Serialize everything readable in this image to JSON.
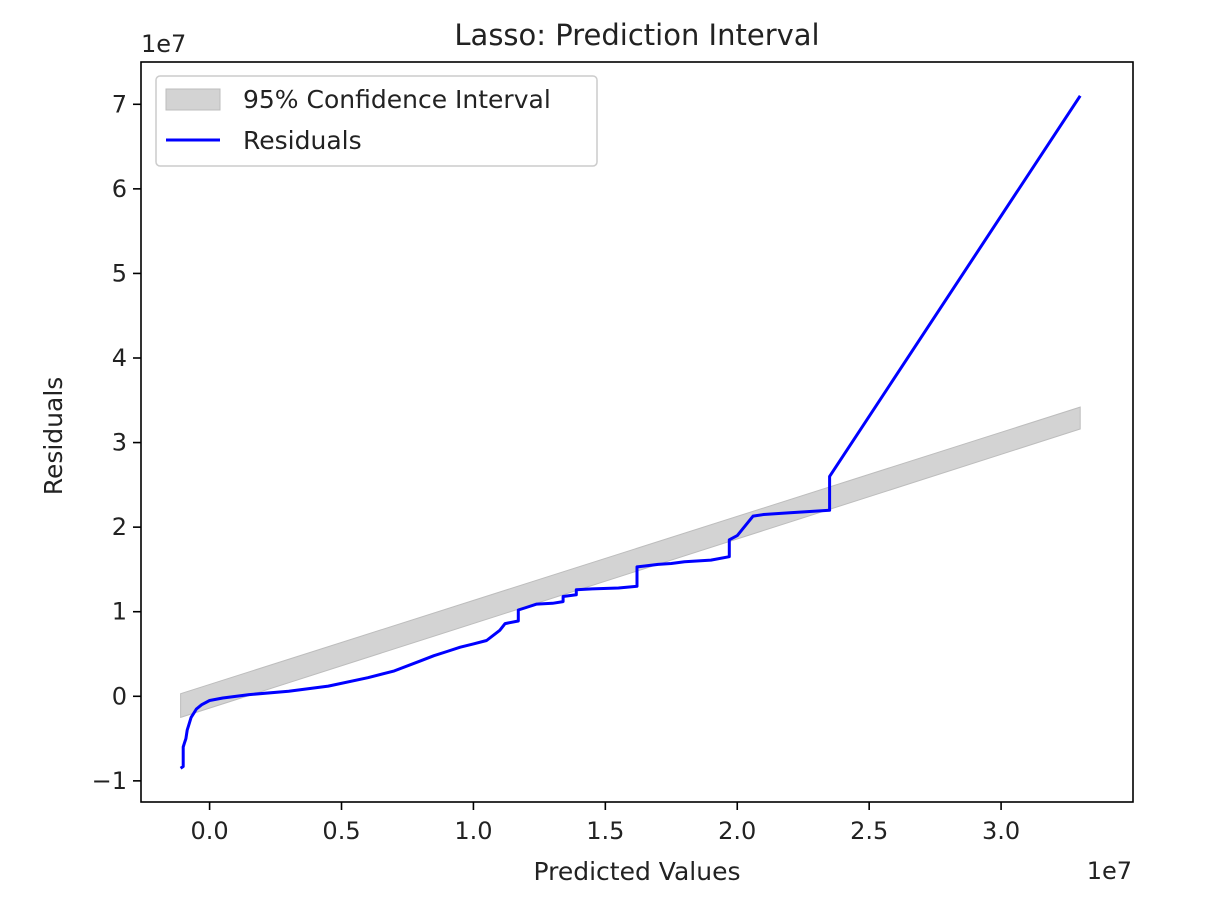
{
  "chart_data": {
    "type": "line",
    "title": "Lasso: Prediction Interval",
    "xlabel": "Predicted Values",
    "ylabel": "Residuals",
    "x_offset_label": "1e7",
    "y_offset_label": "1e7",
    "xlim": [
      -2.6,
      35.0
    ],
    "ylim": [
      -12.5,
      75.0
    ],
    "x_ticks": [
      {
        "value": 0.0,
        "label": "0.0"
      },
      {
        "value": 5.0,
        "label": "0.5"
      },
      {
        "value": 10.0,
        "label": "1.0"
      },
      {
        "value": 15.0,
        "label": "1.5"
      },
      {
        "value": 20.0,
        "label": "2.0"
      },
      {
        "value": 25.0,
        "label": "2.5"
      },
      {
        "value": 30.0,
        "label": "3.0"
      }
    ],
    "y_ticks": [
      {
        "value": -10,
        "label": "−1"
      },
      {
        "value": 0,
        "label": "0"
      },
      {
        "value": 10,
        "label": "1"
      },
      {
        "value": 20,
        "label": "2"
      },
      {
        "value": 30,
        "label": "3"
      },
      {
        "value": 40,
        "label": "4"
      },
      {
        "value": 50,
        "label": "5"
      },
      {
        "value": 60,
        "label": "6"
      },
      {
        "value": 70,
        "label": "7"
      }
    ],
    "grid": false,
    "legend_position": "top-left",
    "series": [
      {
        "name": "95% Confidence Interval",
        "kind": "band",
        "color": "#d3d3d3",
        "edge_color": "#bdbdbd",
        "x": [
          -1.1,
          33.0
        ],
        "lower": [
          -2.5,
          31.6
        ],
        "upper": [
          0.3,
          34.2
        ]
      },
      {
        "name": "Residuals",
        "kind": "line",
        "color": "#0000ff",
        "x": [
          -1.1,
          -1.0,
          -1.0,
          -0.95,
          -0.9,
          -0.85,
          -0.8,
          -0.7,
          -0.6,
          -0.5,
          -0.3,
          0.0,
          0.5,
          1.5,
          3.0,
          4.5,
          6.0,
          7.0,
          8.0,
          8.5,
          9.0,
          9.5,
          10.0,
          10.5,
          11.0,
          11.2,
          11.7,
          11.7,
          12.0,
          12.4,
          13.0,
          13.4,
          13.4,
          13.9,
          13.9,
          14.5,
          15.5,
          16.2,
          16.2,
          16.5,
          17.0,
          17.5,
          18.0,
          19.0,
          19.7,
          19.7,
          20.0,
          20.6,
          21.0,
          22.0,
          23.5,
          23.5,
          33.0
        ],
        "y": [
          -8.5,
          -8.3,
          -6.0,
          -5.5,
          -5.0,
          -4.0,
          -3.5,
          -2.5,
          -2.0,
          -1.5,
          -1.0,
          -0.5,
          -0.2,
          0.2,
          0.6,
          1.2,
          2.2,
          3.0,
          4.2,
          4.8,
          5.3,
          5.8,
          6.2,
          6.6,
          7.8,
          8.6,
          8.9,
          10.2,
          10.5,
          10.9,
          11.0,
          11.2,
          11.8,
          12.0,
          12.6,
          12.7,
          12.8,
          13.0,
          15.3,
          15.4,
          15.6,
          15.7,
          15.9,
          16.1,
          16.5,
          18.5,
          19.0,
          21.3,
          21.5,
          21.7,
          22.0,
          26.0,
          71.0
        ]
      }
    ]
  }
}
